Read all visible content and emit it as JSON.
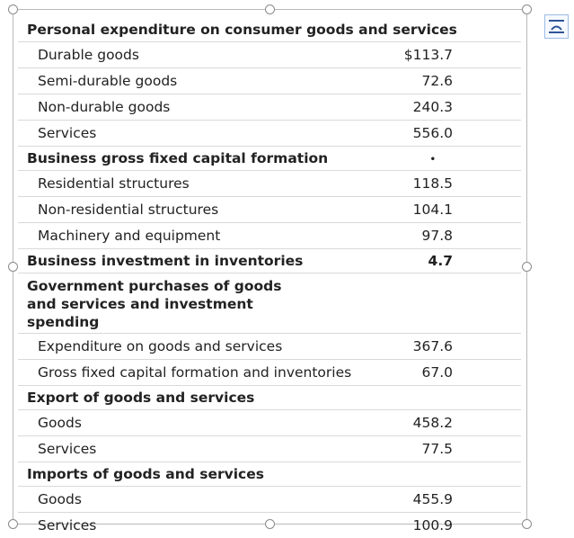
{
  "sections": [
    {
      "title": "Personal expenditure on consumer goods and services",
      "value": null,
      "items": [
        {
          "label": "Durable goods",
          "value": "$113.7"
        },
        {
          "label": "Semi-durable goods",
          "value": "72.6"
        },
        {
          "label": "Non-durable goods",
          "value": "240.3"
        },
        {
          "label": "Services",
          "value": "556.0"
        }
      ]
    },
    {
      "title": "Business gross fixed capital formation",
      "value": null,
      "marker": "•",
      "items": [
        {
          "label": "Residential structures",
          "value": "118.5"
        },
        {
          "label": "Non-residential structures",
          "value": "104.1"
        },
        {
          "label": "Machinery and equipment",
          "value": "97.8"
        }
      ]
    },
    {
      "title": "Business investment in inventories",
      "value": "4.7",
      "items": []
    },
    {
      "title": "Government purchases of goods and services and investment spending",
      "value": null,
      "items": [
        {
          "label": "Expenditure on goods and services",
          "value": "367.6"
        },
        {
          "label": "Gross fixed capital formation and inventories",
          "value": "67.0"
        }
      ]
    },
    {
      "title": "Export of goods and services",
      "value": null,
      "items": [
        {
          "label": "Goods",
          "value": "458.2"
        },
        {
          "label": "Services",
          "value": "77.5"
        }
      ]
    },
    {
      "title": "Imports of goods and services",
      "value": null,
      "items": [
        {
          "label": "Goods",
          "value": "455.9"
        },
        {
          "label": "Services",
          "value": "100.9"
        }
      ]
    }
  ],
  "icons": {
    "layout_options": "layout-options-icon",
    "resize_handle": "resize-handle-icon"
  },
  "colors": {
    "border": "#b9b9b9",
    "row_divider": "#d9d9d9",
    "button_border": "#9dbbe6",
    "icon": "#2f5597"
  }
}
